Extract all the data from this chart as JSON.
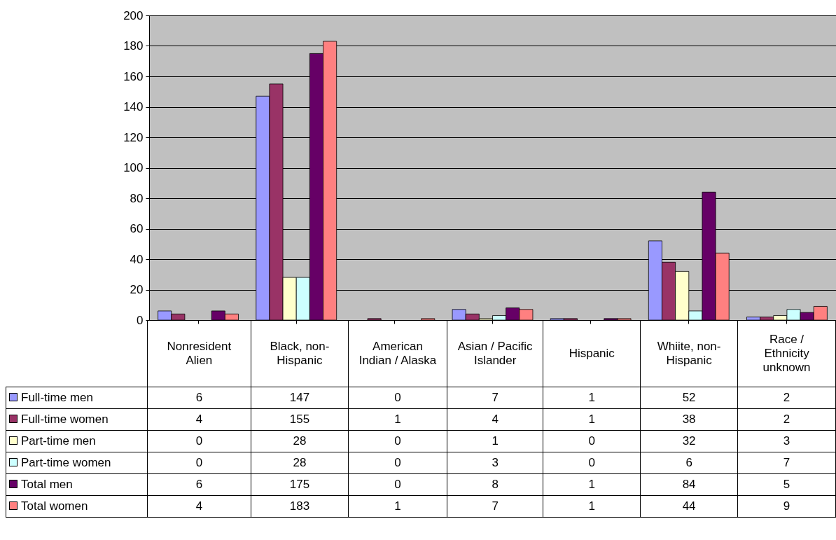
{
  "chart_data": {
    "type": "bar",
    "categories": [
      "Nonresident Alien",
      "Black, non-Hispanic",
      "American Indian / Alaska",
      "Asian / Pacific Islander",
      "Hispanic",
      "Whiite, non-Hispanic",
      "Race / Ethnicity unknown"
    ],
    "series": [
      {
        "name": "Full-time men",
        "color": "#9999ff",
        "values": [
          6,
          147,
          0,
          7,
          1,
          52,
          2
        ]
      },
      {
        "name": "Full-time women",
        "color": "#993366",
        "values": [
          4,
          155,
          1,
          4,
          1,
          38,
          2
        ]
      },
      {
        "name": "Part-time men",
        "color": "#ffffcc",
        "values": [
          0,
          28,
          0,
          1,
          0,
          32,
          3
        ]
      },
      {
        "name": "Part-time women",
        "color": "#ccffff",
        "values": [
          0,
          28,
          0,
          3,
          0,
          6,
          7
        ]
      },
      {
        "name": "Total men",
        "color": "#660066",
        "values": [
          6,
          175,
          0,
          8,
          1,
          84,
          5
        ]
      },
      {
        "name": "Total women",
        "color": "#ff8080",
        "values": [
          4,
          183,
          1,
          7,
          1,
          44,
          9
        ]
      }
    ],
    "ylim": [
      0,
      200
    ],
    "yticks": [
      0,
      20,
      40,
      60,
      80,
      100,
      120,
      140,
      160,
      180,
      200
    ],
    "grid": "y",
    "legend": "bottom left",
    "data_labels": true
  }
}
